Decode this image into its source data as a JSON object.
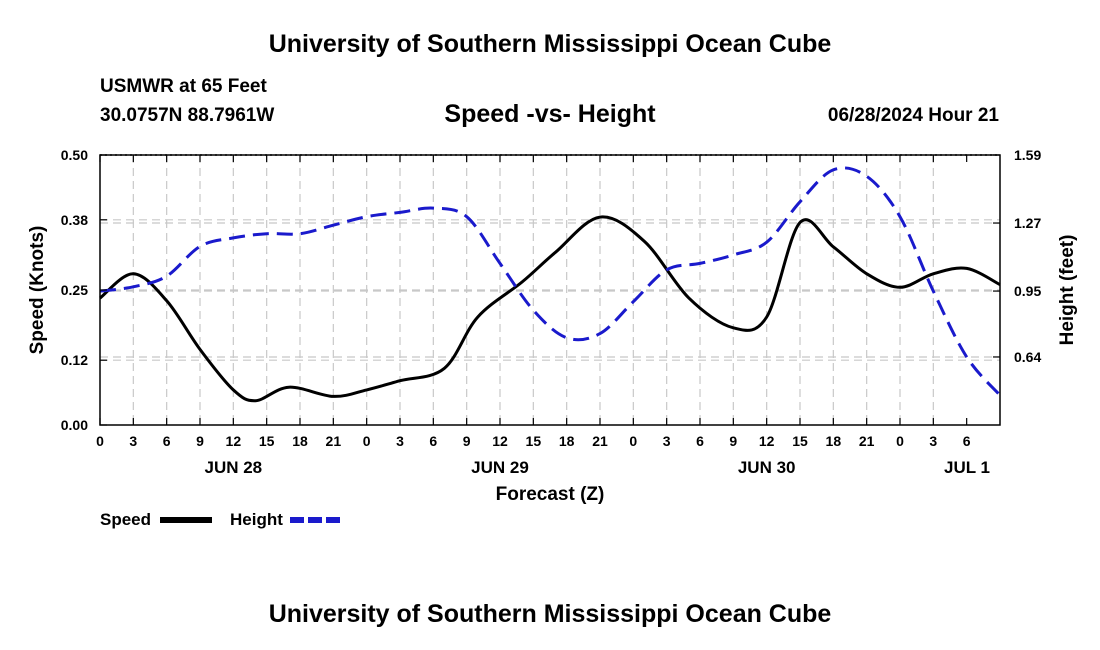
{
  "header": {
    "main_title": "University of Southern Mississippi Ocean Cube",
    "station": "USMWR at 65 Feet",
    "coords": "30.0757N  88.7961W",
    "date_hour": "06/28/2024 Hour 21"
  },
  "footer": {
    "title": "University of Southern Mississippi Ocean Cube"
  },
  "chart_data": {
    "type": "line",
    "title": "Speed -vs- Height",
    "xlabel": "Forecast (Z)",
    "ylabel_left": "Speed (Knots)",
    "ylabel_right": "Height (feet)",
    "grid": true,
    "x_hours": [
      0,
      81
    ],
    "x_tick_labels": [
      "0",
      "3",
      "6",
      "9",
      "12",
      "15",
      "18",
      "21",
      "0",
      "3",
      "6",
      "9",
      "12",
      "15",
      "18",
      "21",
      "0",
      "3",
      "6",
      "9",
      "12",
      "15",
      "18",
      "21",
      "0",
      "3",
      "6"
    ],
    "day_labels": [
      {
        "label": "JUN 28",
        "hour": 12
      },
      {
        "label": "JUN 29",
        "hour": 36
      },
      {
        "label": "JUN 30",
        "hour": 60
      },
      {
        "label": "JUL 1",
        "hour": 81
      }
    ],
    "ylim_left": [
      0,
      0.5
    ],
    "yticks_left": [
      "0.00",
      "0.12",
      "0.25",
      "0.38",
      "0.50"
    ],
    "ylim_right": [
      0.32,
      1.59
    ],
    "yticks_right": [
      "0.64",
      "0.95",
      "1.27",
      "1.59"
    ],
    "series": [
      {
        "name": "Speed",
        "axis": "left",
        "color": "#000000",
        "dash": "solid",
        "hours": [
          0,
          3,
          6,
          9,
          12,
          14,
          17,
          21,
          24,
          27,
          31,
          34,
          38,
          41,
          45,
          49,
          53,
          57,
          60,
          63,
          66,
          69,
          72,
          75,
          78,
          81
        ],
        "values": [
          0.235,
          0.28,
          0.23,
          0.14,
          0.065,
          0.045,
          0.07,
          0.053,
          0.065,
          0.082,
          0.105,
          0.2,
          0.265,
          0.32,
          0.385,
          0.34,
          0.235,
          0.18,
          0.2,
          0.375,
          0.33,
          0.28,
          0.255,
          0.28,
          0.29,
          0.26
        ]
      },
      {
        "name": "Height",
        "axis": "right",
        "color": "#1a1acc",
        "dash": "dashed",
        "hours": [
          0,
          3,
          6,
          9,
          12,
          15,
          18,
          21,
          24,
          27,
          30,
          33,
          36,
          39,
          42,
          45,
          48,
          51,
          54,
          57,
          60,
          63,
          66,
          69,
          72,
          75,
          78,
          81
        ],
        "values": [
          0.95,
          0.97,
          1.02,
          1.16,
          1.2,
          1.22,
          1.22,
          1.26,
          1.3,
          1.32,
          1.34,
          1.3,
          1.08,
          0.86,
          0.73,
          0.75,
          0.9,
          1.05,
          1.08,
          1.12,
          1.18,
          1.37,
          1.52,
          1.49,
          1.3,
          0.95,
          0.64,
          0.46
        ]
      }
    ],
    "legend": [
      {
        "name": "Speed",
        "color": "#000000",
        "dash": "solid"
      },
      {
        "name": "Height",
        "color": "#1a1acc",
        "dash": "dashed"
      }
    ]
  }
}
